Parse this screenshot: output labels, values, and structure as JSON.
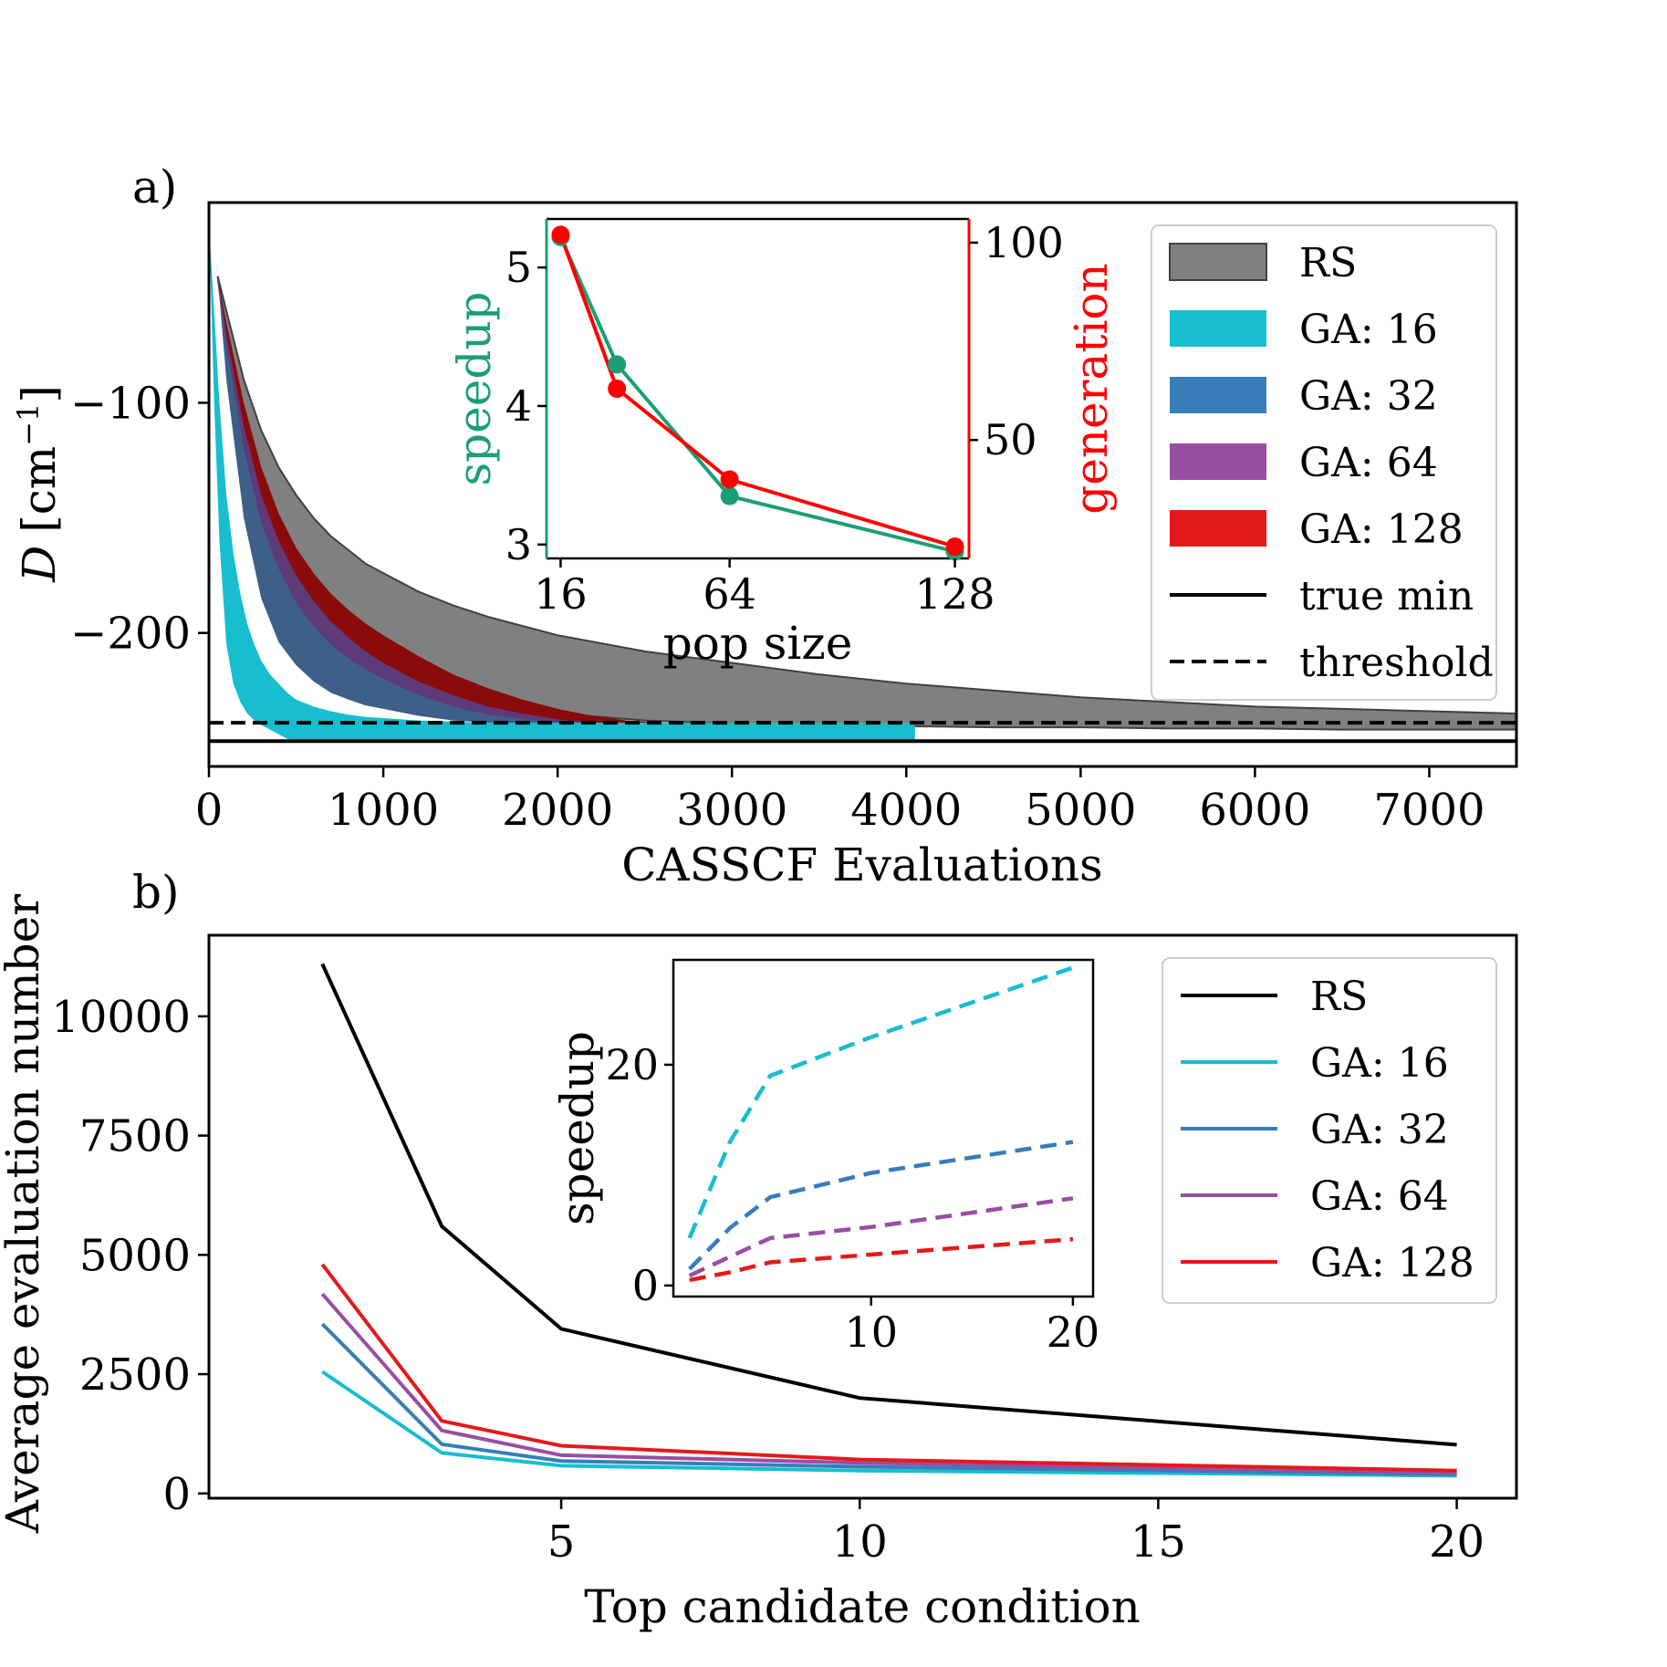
{
  "chart_data": [
    {
      "panel_label": "a)",
      "type": "area",
      "xlabel": "CASSCF Evaluations",
      "ylabel_main": "D",
      "ylabel_unit": "[cm",
      "ylabel_exp": "−1",
      "ylabel_close": "]",
      "xlim": [
        0,
        7500
      ],
      "ylim": [
        -258,
        -13
      ],
      "xticks": [
        0,
        1000,
        2000,
        3000,
        4000,
        5000,
        6000,
        7000
      ],
      "xtick_labels": [
        "0",
        "1000",
        "2000",
        "3000",
        "4000",
        "5000",
        "6000",
        "7000"
      ],
      "yticks": [
        -100,
        -200
      ],
      "ytick_labels": [
        "−100",
        "−200"
      ],
      "true_min": -247,
      "threshold": -239,
      "legend_location": "upper right",
      "series": [
        {
          "name": "RS",
          "color": "#808080",
          "end_x": 7500,
          "x": [
            50,
            100,
            200,
            300,
            400,
            500,
            600,
            700,
            800,
            900,
            1000,
            1200,
            1400,
            1600,
            1800,
            2000,
            2500,
            3000,
            3500,
            4000,
            4500,
            5000,
            5500,
            6000,
            6500,
            7000,
            7500
          ],
          "lower": [
            -45,
            -75,
            -118,
            -145,
            -165,
            -180,
            -190,
            -198,
            -204,
            -209,
            -213,
            -220,
            -226,
            -230,
            -233,
            -235,
            -238,
            -239.5,
            -240,
            -240.5,
            -241,
            -241,
            -241.5,
            -241.5,
            -242,
            -242,
            -242
          ],
          "upper": [
            -45,
            -60,
            -90,
            -112,
            -128,
            -140,
            -150,
            -158,
            -164,
            -170,
            -174,
            -182,
            -188,
            -193,
            -197,
            -201,
            -208,
            -213,
            -218,
            -222,
            -225,
            -228,
            -230,
            -232,
            -233,
            -234,
            -235
          ]
        },
        {
          "name": "GA: 128",
          "color": "#e31a1c",
          "end_x": 2800,
          "x": [
            50,
            100,
            200,
            300,
            400,
            500,
            600,
            700,
            800,
            900,
            1000,
            1200,
            1400,
            1600,
            1800,
            2000,
            2200,
            2400,
            2600,
            2800
          ],
          "lower": [
            -45,
            -80,
            -130,
            -165,
            -185,
            -198,
            -207,
            -214,
            -219,
            -223,
            -226,
            -231,
            -234,
            -236,
            -237.5,
            -238.5,
            -239,
            -239.5,
            -240,
            -240
          ],
          "upper": [
            -45,
            -65,
            -100,
            -128,
            -148,
            -163,
            -174,
            -183,
            -190,
            -196,
            -201,
            -210,
            -218,
            -224,
            -229,
            -233,
            -236,
            -238,
            -239,
            -240
          ]
        },
        {
          "name": "GA: 64",
          "color": "#984ea3",
          "end_x": 2400,
          "x": [
            50,
            100,
            200,
            300,
            400,
            500,
            600,
            700,
            800,
            900,
            1000,
            1200,
            1400,
            1600,
            1800,
            2000,
            2200,
            2400
          ],
          "lower": [
            -45,
            -85,
            -140,
            -175,
            -195,
            -207,
            -215,
            -221,
            -225,
            -228,
            -230,
            -234,
            -236.5,
            -238,
            -239,
            -239.5,
            -240,
            -240
          ],
          "upper": [
            -45,
            -70,
            -110,
            -140,
            -160,
            -175,
            -186,
            -195,
            -202,
            -208,
            -213,
            -221,
            -227,
            -232,
            -235,
            -237.5,
            -239,
            -240
          ]
        },
        {
          "name": "GA: 32",
          "color": "#377eb8",
          "end_x": 7500,
          "x": [
            50,
            100,
            200,
            300,
            400,
            500,
            600,
            700,
            800,
            900,
            1000,
            1200,
            1400,
            1600,
            1800,
            2000,
            2200,
            2400,
            2600,
            3000,
            4000,
            7500
          ],
          "lower": [
            -45,
            -90,
            -150,
            -185,
            -204,
            -214,
            -221,
            -226,
            -229,
            -231.5,
            -233,
            -236,
            -238,
            -239,
            -239.5,
            -240,
            -240.5,
            -241,
            -241,
            -241,
            -241,
            -241
          ],
          "upper": [
            -45,
            -75,
            -120,
            -152,
            -172,
            -187,
            -197,
            -205,
            -211,
            -216,
            -220,
            -227,
            -232,
            -235.5,
            -237.5,
            -239,
            -240,
            -241,
            -241,
            -241,
            -241,
            -241
          ]
        },
        {
          "name": "GA: 16",
          "color": "#17becf",
          "end_x": 4050,
          "x": [
            0,
            30,
            60,
            100,
            140,
            180,
            220,
            260,
            300,
            350,
            400,
            450,
            500,
            600,
            700,
            800,
            900,
            1000,
            1200,
            1400,
            1600,
            1800,
            2000,
            2500,
            3000,
            3500,
            4050
          ],
          "lower": [
            -22,
            -100,
            -160,
            -205,
            -222,
            -230,
            -235,
            -238,
            -240,
            -242,
            -244,
            -246,
            -247,
            -247,
            -247,
            -247,
            -247,
            -247,
            -247,
            -247,
            -247,
            -247,
            -247,
            -247,
            -247,
            -247,
            -247
          ],
          "upper": [
            -22,
            -60,
            -100,
            -140,
            -165,
            -183,
            -196,
            -205,
            -212,
            -218,
            -222,
            -226,
            -229,
            -232,
            -234,
            -235.5,
            -236.5,
            -237,
            -238,
            -238.5,
            -239,
            -239,
            -239,
            -239,
            -239,
            -239,
            -239
          ]
        }
      ],
      "legend": [
        {
          "label": "RS",
          "kind": "patch",
          "color": "#808080"
        },
        {
          "label": "GA: 16",
          "kind": "patch",
          "color": "#17becf"
        },
        {
          "label": "GA: 32",
          "kind": "patch",
          "color": "#377eb8"
        },
        {
          "label": "GA: 64",
          "kind": "patch",
          "color": "#984ea3"
        },
        {
          "label": "GA: 128",
          "kind": "patch",
          "color": "#e31a1c"
        },
        {
          "label": "true min",
          "kind": "line",
          "color": "#000000"
        },
        {
          "label": "threshold",
          "kind": "dashed",
          "color": "#000000"
        }
      ],
      "inset": {
        "type": "line",
        "xlabel": "pop size",
        "ylabel_left": "speedup",
        "ylabel_right": "generation",
        "left_color": "#1b9e77",
        "right_color": "#ff0000",
        "xlim": [
          12,
          132
        ],
        "ylim_left": [
          2.9,
          5.35
        ],
        "ylim_right": [
          20,
          106
        ],
        "xticks": [
          16,
          64,
          128
        ],
        "xtick_labels": [
          "16",
          "64",
          "128"
        ],
        "yticks_left": [
          3,
          4,
          5
        ],
        "ytick_labels_left": [
          "3",
          "4",
          "5"
        ],
        "yticks_right": [
          50,
          100
        ],
        "ytick_labels_right": [
          "50",
          "100"
        ],
        "speedup": {
          "x": [
            16,
            32,
            64,
            128
          ],
          "y": [
            5.22,
            4.3,
            3.35,
            2.95
          ]
        },
        "generation": {
          "x": [
            16,
            32,
            64,
            128
          ],
          "y": [
            102,
            63,
            40,
            23
          ]
        }
      }
    },
    {
      "panel_label": "b)",
      "type": "line",
      "xlabel": "Top candidate condition",
      "ylabel": "Average evaluation number",
      "xlim": [
        -0.9,
        21
      ],
      "ylim": [
        -100,
        11700
      ],
      "xticks": [
        5,
        10,
        15,
        20
      ],
      "xtick_labels": [
        "5",
        "10",
        "15",
        "20"
      ],
      "yticks": [
        0,
        2500,
        5000,
        7500,
        10000
      ],
      "ytick_labels": [
        "0",
        "2500",
        "5000",
        "7500",
        "10000"
      ],
      "legend_location": "upper right",
      "x": [
        1,
        3,
        5,
        10,
        20
      ],
      "series": [
        {
          "name": "RS",
          "color": "#000000",
          "values": [
            11100,
            5600,
            3450,
            2000,
            1020
          ]
        },
        {
          "name": "GA: 16",
          "color": "#17becf",
          "values": [
            2550,
            850,
            580,
            480,
            370
          ]
        },
        {
          "name": "GA: 32",
          "color": "#377eb8",
          "values": [
            3550,
            1030,
            680,
            560,
            400
          ]
        },
        {
          "name": "GA: 64",
          "color": "#984ea3",
          "values": [
            4180,
            1320,
            800,
            640,
            430
          ]
        },
        {
          "name": "GA: 128",
          "color": "#e31a1c",
          "values": [
            4800,
            1520,
            1000,
            710,
            480
          ]
        }
      ],
      "legend": [
        {
          "label": "RS",
          "color": "#000000"
        },
        {
          "label": "GA: 16",
          "color": "#17becf"
        },
        {
          "label": "GA: 32",
          "color": "#377eb8"
        },
        {
          "label": "GA: 64",
          "color": "#984ea3"
        },
        {
          "label": "GA: 128",
          "color": "#e31a1c"
        }
      ],
      "inset": {
        "type": "line",
        "ylabel": "speedup",
        "xlim": [
          0.2,
          21
        ],
        "ylim": [
          -1,
          29.5
        ],
        "xticks": [
          10,
          20
        ],
        "xtick_labels": [
          "10",
          "20"
        ],
        "yticks": [
          0,
          20
        ],
        "ytick_labels": [
          "0",
          "20"
        ],
        "x": [
          1,
          3,
          5,
          10,
          20
        ],
        "series": [
          {
            "name": "GA: 16",
            "color": "#17becf",
            "values": [
              4.3,
              13,
              19,
              22.5,
              28.8
            ]
          },
          {
            "name": "GA: 32",
            "color": "#377eb8",
            "values": [
              1.5,
              5.2,
              8,
              10.2,
              13
            ]
          },
          {
            "name": "GA: 64",
            "color": "#984ea3",
            "values": [
              0.9,
              2.6,
              4.3,
              5.3,
              7.9
            ]
          },
          {
            "name": "GA: 128",
            "color": "#e31a1c",
            "values": [
              0.5,
              1.2,
              2.1,
              2.8,
              4.2
            ]
          }
        ]
      }
    }
  ]
}
